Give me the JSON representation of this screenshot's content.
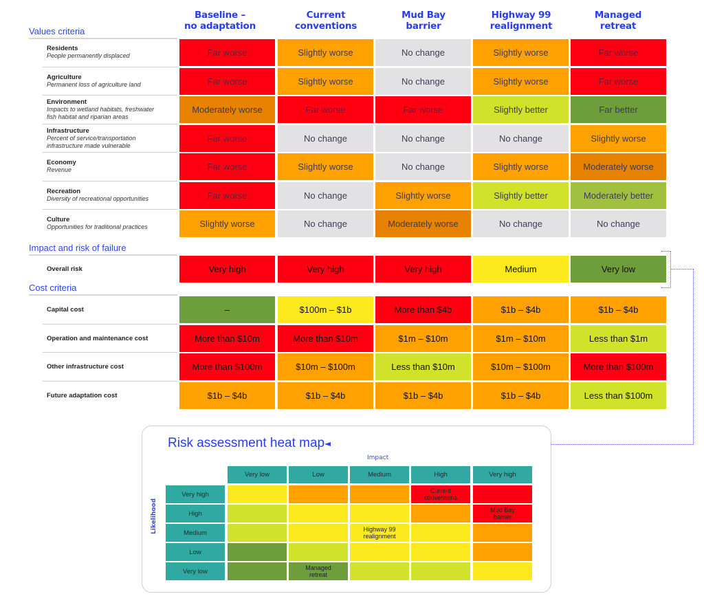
{
  "colors": {
    "far_worse": "#ff0013",
    "moderately_worse": "#e78100",
    "slightly_worse": "#ffa100",
    "no_change": "#e2e2e4",
    "slightly_better": "#d1e22b",
    "moderately_better": "#a2c040",
    "far_better": "#6e9d3b",
    "yellow": "#fcea1f",
    "teal": "#2fa9a2",
    "accent_blue": "#2b3cf0"
  },
  "columns": [
    {
      "line1": "Baseline  –",
      "line2": "no adaptation"
    },
    {
      "line1": "Current",
      "line2": "conventions"
    },
    {
      "line1": "Mud Bay",
      "line2": "barrier"
    },
    {
      "line1": "Highway 99",
      "line2": "realignment"
    },
    {
      "line1": "Managed",
      "line2": "retreat"
    }
  ],
  "sections": {
    "values": "Values criteria",
    "risk": "Impact and risk of failure",
    "cost": "Cost criteria"
  },
  "values_rows": [
    {
      "title": "Residents",
      "subtitle": "People permanently displaced",
      "subtitle2": "",
      "cells": [
        "Far worse",
        "Slightly worse",
        "No change",
        "Slightly worse",
        "Far worse"
      ]
    },
    {
      "title": "Agriculture",
      "subtitle": "Permanent loss of agriculture land",
      "subtitle2": "",
      "cells": [
        "Far worse",
        "Slightly worse",
        "No change",
        "Slightly worse",
        "Far worse"
      ]
    },
    {
      "title": "Environment",
      "subtitle": "Impacts to wetland habitats, freshwater",
      "subtitle2": "fish habitat and riparian areas",
      "cells": [
        "Moderately worse",
        "Far worse",
        "Far worse",
        "Slightly better",
        "Far better"
      ]
    },
    {
      "title": "Infrastructure",
      "subtitle": "Percent of service/transportation",
      "subtitle2": "infrastructure made vulnerable",
      "cells": [
        "Far worse",
        "No change",
        "No change",
        "No change",
        "Slightly worse"
      ]
    },
    {
      "title": "Economy",
      "subtitle": "Revenue",
      "subtitle2": "",
      "cells": [
        "Far worse",
        "Slightly worse",
        "No change",
        "Slightly worse",
        "Moderately worse"
      ]
    },
    {
      "title": "Recreation",
      "subtitle": "Diversity of recreational opportunities",
      "subtitle2": "",
      "cells": [
        "Far worse",
        "No change",
        "Slightly worse",
        "Slightly better",
        "Moderately better"
      ]
    },
    {
      "title": "Culture",
      "subtitle": "Opportunities for traditional practices",
      "subtitle2": "",
      "cells": [
        "Slightly worse",
        "No change",
        "Moderately worse",
        "No change",
        "No change"
      ]
    }
  ],
  "risk_rows": [
    {
      "title": "Overall risk",
      "cells": [
        "Very high",
        "Very high",
        "Very high",
        "Medium",
        "Very low"
      ]
    }
  ],
  "cost_rows": [
    {
      "title": "Capital cost",
      "cells": [
        "–",
        "$100m – $1b",
        "More than $4b",
        "$1b – $4b",
        "$1b – $4b"
      ]
    },
    {
      "title": "Operation and maintenance cost",
      "cells": [
        "More than $10m",
        "More than $10m",
        "$1m – $10m",
        "$1m – $10m",
        "Less than $1m"
      ]
    },
    {
      "title": "Other infrastructure cost",
      "cells": [
        "More than $100m",
        "$10m – $100m",
        "Less than $10m",
        "$10m – $100m",
        "More than $100m"
      ]
    },
    {
      "title": "Future adaptation cost",
      "cells": [
        "$1b – $4b",
        "$1b – $4b",
        "$1b – $4b",
        "$1b – $4b",
        "Less than $100m"
      ]
    }
  ],
  "heatmap": {
    "title": "Risk assessment heat map",
    "x_label": "Impact",
    "y_label": "Likelihood",
    "impact_levels": [
      "Very low",
      "Low",
      "Medium",
      "High",
      "Very high"
    ],
    "likelihood_levels": [
      "Very high",
      "High",
      "Medium",
      "Low",
      "Very low"
    ],
    "placements": [
      {
        "option": "Current conventions",
        "line1": "Current",
        "line2": "conventions",
        "likelihood": "Very high",
        "impact": "High"
      },
      {
        "option": "Mud Bay barrier",
        "line1": "Mud Bay",
        "line2": "barrier",
        "likelihood": "High",
        "impact": "Very high"
      },
      {
        "option": "Highway 99 realignment",
        "line1": "Highway 99",
        "line2": "realignment",
        "likelihood": "Medium",
        "impact": "Medium"
      },
      {
        "option": "Managed retreat",
        "line1": "Managed",
        "line2": "retreat",
        "likelihood": "Very low",
        "impact": "Low"
      }
    ]
  },
  "chart_data": [
    {
      "type": "table",
      "title": "Adaptation options evaluation",
      "columns": [
        "Baseline – no adaptation",
        "Current conventions",
        "Mud Bay barrier",
        "Highway 99 realignment",
        "Managed retreat"
      ],
      "groups": [
        {
          "name": "Values criteria",
          "rows": [
            {
              "criterion": "Residents – People permanently displaced",
              "values": [
                "Far worse",
                "Slightly worse",
                "No change",
                "Slightly worse",
                "Far worse"
              ]
            },
            {
              "criterion": "Agriculture – Permanent loss of agriculture land",
              "values": [
                "Far worse",
                "Slightly worse",
                "No change",
                "Slightly worse",
                "Far worse"
              ]
            },
            {
              "criterion": "Environment – Impacts to wetland habitats, freshwater fish habitat and riparian areas",
              "values": [
                "Moderately worse",
                "Far worse",
                "Far worse",
                "Slightly better",
                "Far better"
              ]
            },
            {
              "criterion": "Infrastructure – Percent of service/transportation infrastructure made vulnerable",
              "values": [
                "Far worse",
                "No change",
                "No change",
                "No change",
                "Slightly worse"
              ]
            },
            {
              "criterion": "Economy – Revenue",
              "values": [
                "Far worse",
                "Slightly worse",
                "No change",
                "Slightly worse",
                "Moderately worse"
              ]
            },
            {
              "criterion": "Recreation – Diversity of recreational opportunities",
              "values": [
                "Far worse",
                "No change",
                "Slightly worse",
                "Slightly better",
                "Moderately better"
              ]
            },
            {
              "criterion": "Culture – Opportunities for traditional practices",
              "values": [
                "Slightly worse",
                "No change",
                "Moderately worse",
                "No change",
                "No change"
              ]
            }
          ]
        },
        {
          "name": "Impact and risk of failure",
          "rows": [
            {
              "criterion": "Overall risk",
              "values": [
                "Very high",
                "Very high",
                "Very high",
                "Medium",
                "Very low"
              ]
            }
          ]
        },
        {
          "name": "Cost criteria",
          "rows": [
            {
              "criterion": "Capital cost",
              "values": [
                "–",
                "$100m – $1b",
                "More than $4b",
                "$1b – $4b",
                "$1b – $4b"
              ]
            },
            {
              "criterion": "Operation and maintenance cost",
              "values": [
                "More than $10m",
                "More than $10m",
                "$1m – $10m",
                "$1m – $10m",
                "Less than $1m"
              ]
            },
            {
              "criterion": "Other infrastructure cost",
              "values": [
                "More than $100m",
                "$10m – $100m",
                "Less than $10m",
                "$10m – $100m",
                "More than $100m"
              ]
            },
            {
              "criterion": "Future adaptation cost",
              "values": [
                "$1b – $4b",
                "$1b – $4b",
                "$1b – $4b",
                "$1b – $4b",
                "Less than $100m"
              ]
            }
          ]
        }
      ]
    },
    {
      "type": "heatmap",
      "title": "Risk assessment heat map",
      "xlabel": "Impact",
      "ylabel": "Likelihood",
      "x": [
        "Very low",
        "Low",
        "Medium",
        "High",
        "Very high"
      ],
      "y": [
        "Very high",
        "High",
        "Medium",
        "Low",
        "Very low"
      ],
      "cell_colors": [
        [
          "yellow",
          "orange",
          "orange",
          "red",
          "red"
        ],
        [
          "yellow-green",
          "yellow",
          "yellow",
          "orange",
          "red"
        ],
        [
          "yellow-green",
          "yellow",
          "yellow",
          "yellow",
          "orange"
        ],
        [
          "green",
          "yellow-green",
          "yellow",
          "yellow",
          "orange"
        ],
        [
          "green",
          "green",
          "yellow-green",
          "yellow-green",
          "yellow"
        ]
      ],
      "annotations": [
        {
          "text": "Current conventions",
          "x": "High",
          "y": "Very high"
        },
        {
          "text": "Mud Bay barrier",
          "x": "Very high",
          "y": "High"
        },
        {
          "text": "Highway 99 realignment",
          "x": "Medium",
          "y": "Medium"
        },
        {
          "text": "Managed retreat",
          "x": "Low",
          "y": "Very low"
        }
      ]
    }
  ]
}
